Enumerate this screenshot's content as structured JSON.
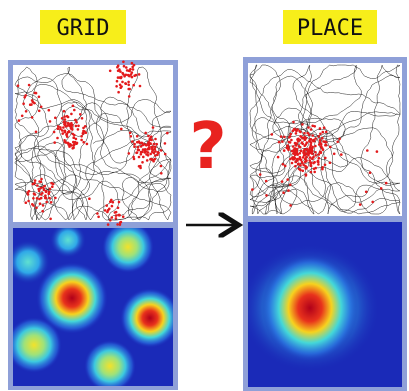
{
  "labels": {
    "left": "GRID",
    "right": "PLACE",
    "question": "?"
  }
}
